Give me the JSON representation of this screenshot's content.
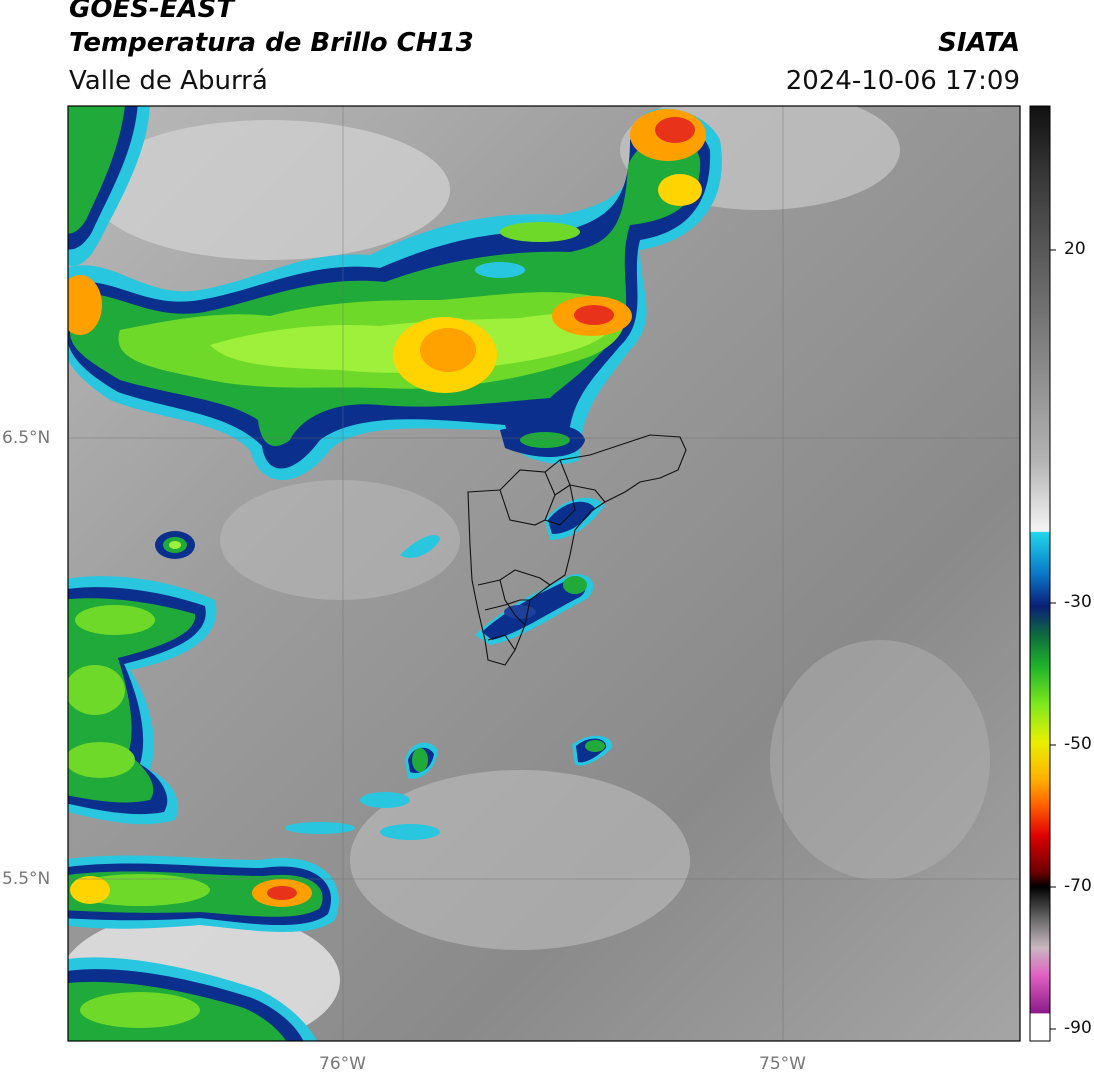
{
  "header": {
    "satellite": "GOES-EAST",
    "product": "Temperatura de Brillo CH13",
    "region": "Valle de Aburrá",
    "organization": "SIATA",
    "timestamp": "2024-10-06 17:09"
  },
  "map": {
    "latitude_labels": [
      "6.5°N",
      "5.5°N"
    ],
    "longitude_labels": [
      "76°W",
      "75°W"
    ],
    "gridlines": true,
    "colormap": "brightness temperature (°C)"
  },
  "colorbar": {
    "tick_labels": [
      "20",
      "-30",
      "-50",
      "-70",
      "-90"
    ],
    "range": [
      -90,
      30
    ]
  },
  "colors": {
    "background": "#ffffff",
    "cold_core": "#e8331a",
    "green_cloud": "#5fd12a",
    "blue_edge": "#0a2f8c",
    "cyan_edge": "#29c6e0",
    "gray_mid": "#8c8c8c"
  }
}
